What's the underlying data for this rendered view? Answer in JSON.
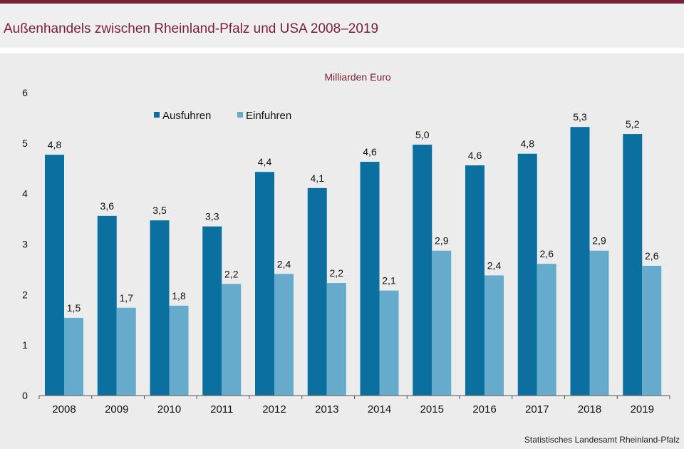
{
  "header": {
    "title": "Außenhandels zwischen Rheinland-Pfalz und USA 2008–2019"
  },
  "footer": {
    "source": "Statistisches Landesamt  Rheinland-Pfalz"
  },
  "colors": {
    "accent": "#7b1e36",
    "ausfuhren": "#0b6fa0",
    "einfuhren": "#66abcb"
  },
  "chart_data": {
    "type": "bar",
    "unit_label": "Milliarden Euro",
    "categories": [
      "2008",
      "2009",
      "2010",
      "2011",
      "2012",
      "2013",
      "2014",
      "2015",
      "2016",
      "2017",
      "2018",
      "2019"
    ],
    "series": [
      {
        "name": "Ausfuhren",
        "values": [
          4.77,
          3.56,
          3.47,
          3.35,
          4.43,
          4.11,
          4.63,
          4.97,
          4.56,
          4.79,
          5.32,
          5.18
        ],
        "labels": [
          "4,8",
          "3,6",
          "3,5",
          "3,3",
          "4,4",
          "4,1",
          "4,6",
          "5,0",
          "4,6",
          "4,8",
          "5,3",
          "5,2"
        ]
      },
      {
        "name": "Einfuhren",
        "values": [
          1.54,
          1.74,
          1.78,
          2.21,
          2.41,
          2.23,
          2.08,
          2.87,
          2.38,
          2.61,
          2.87,
          2.57
        ],
        "labels": [
          "1,5",
          "1,7",
          "1,8",
          "2,2",
          "2,4",
          "2,2",
          "2,1",
          "2,9",
          "2,4",
          "2,6",
          "2,9",
          "2,6"
        ]
      }
    ],
    "y_ticks": [
      "0",
      "1",
      "2",
      "3",
      "4",
      "5",
      "6"
    ],
    "ylim": [
      0,
      6
    ],
    "grid": false,
    "legend_position": "top-left"
  }
}
